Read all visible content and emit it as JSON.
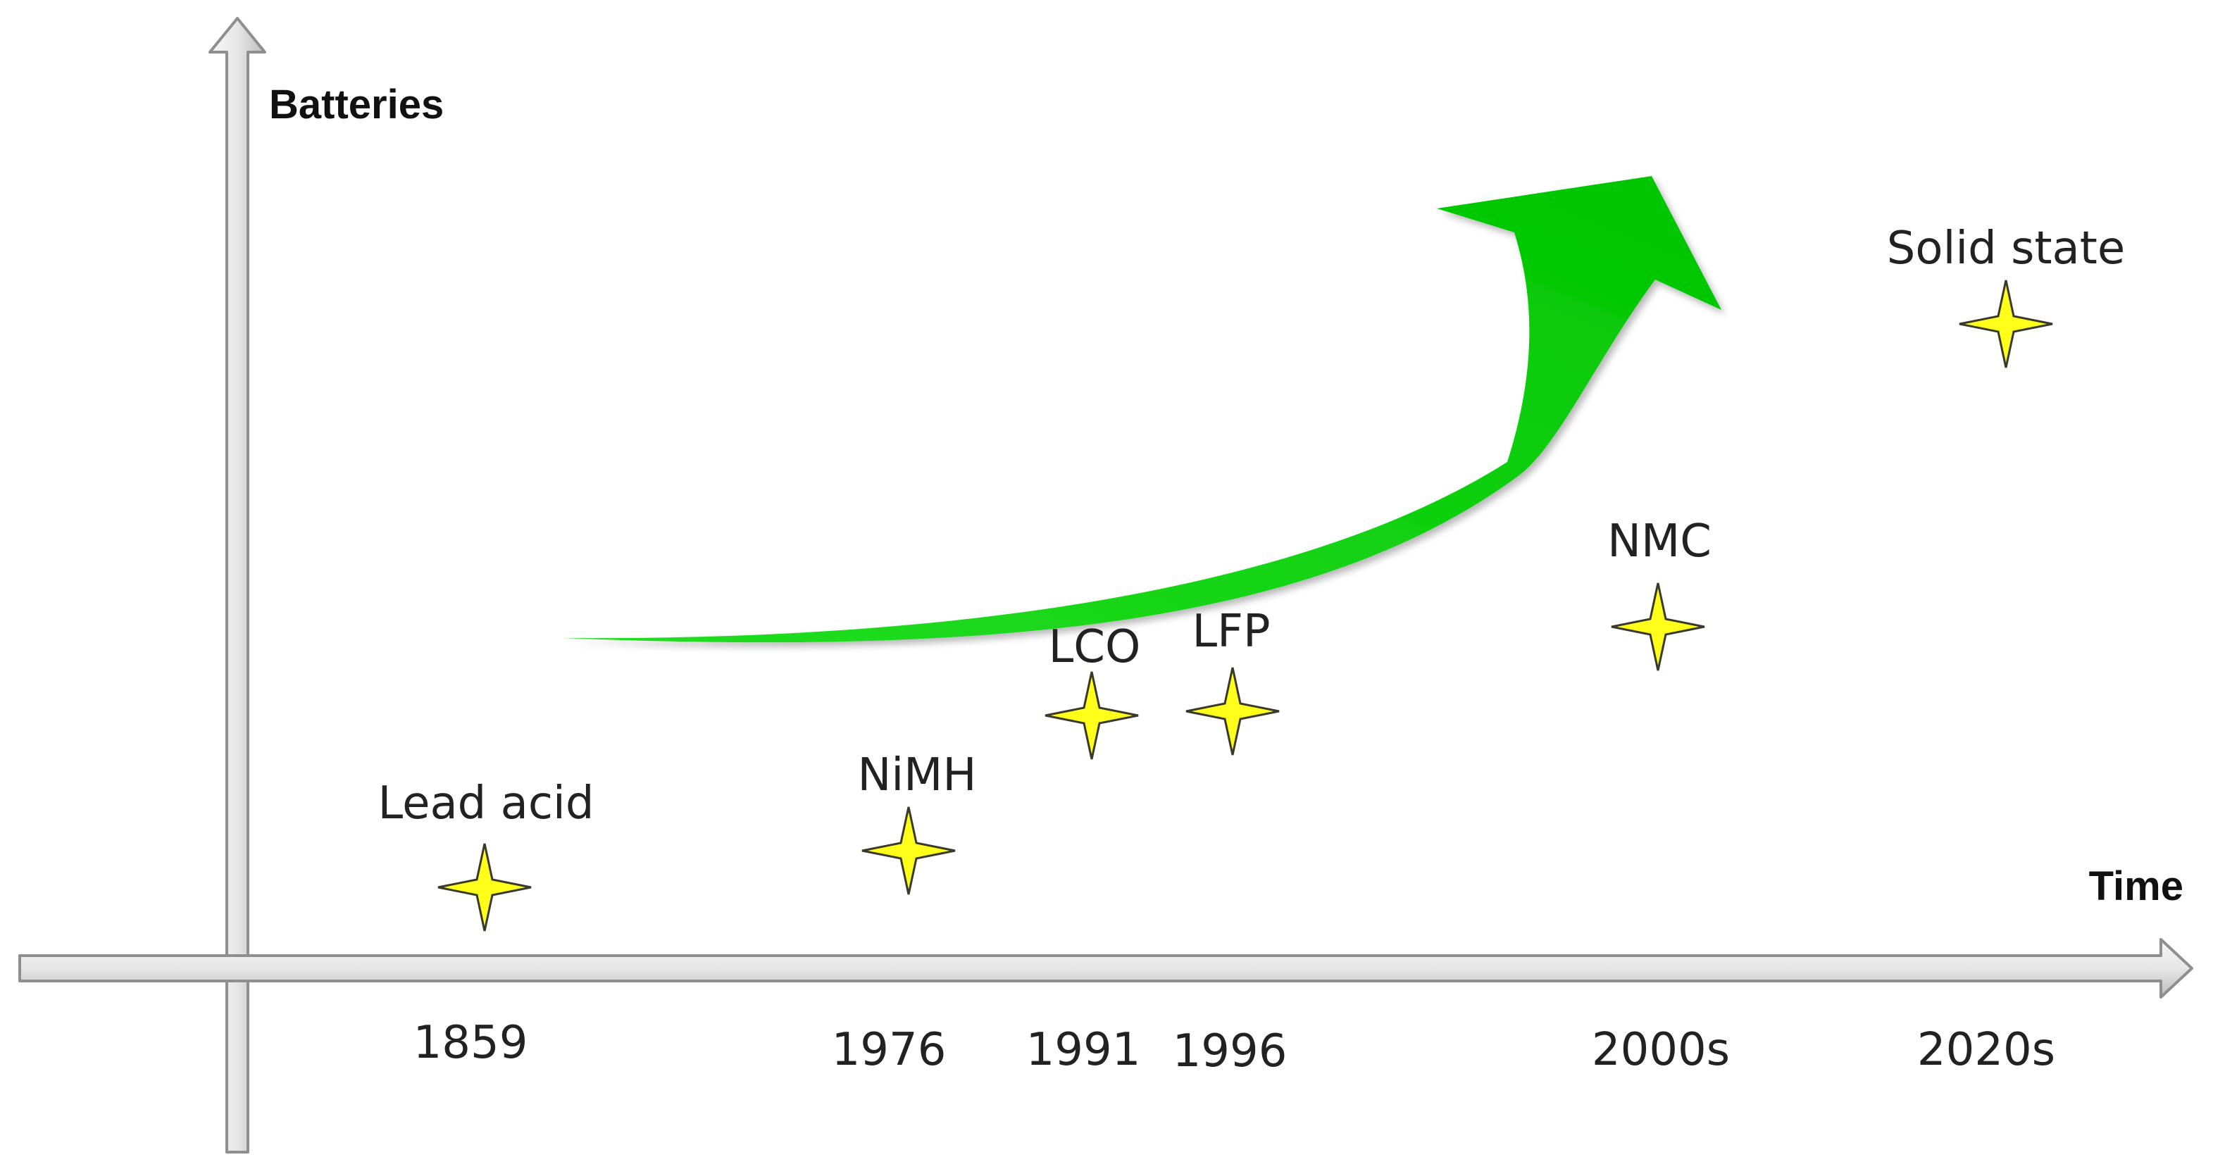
{
  "axes": {
    "y_title": "Batteries",
    "x_title": "Time"
  },
  "milestones": [
    {
      "name": "Lead acid",
      "year": "1859"
    },
    {
      "name": "NiMH",
      "year": "1976"
    },
    {
      "name": "LCO",
      "year": "1991"
    },
    {
      "name": "LFP",
      "year": "1996"
    },
    {
      "name": "NMC",
      "year": "2000s"
    },
    {
      "name": "Solid state",
      "year": "2020s"
    }
  ],
  "colors": {
    "star_fill": "#ffff1a",
    "star_stroke": "#3a3a2a",
    "trend_arrow": "#00cc00",
    "axis_light": "#f4f4f4",
    "axis_dark": "#9a9a9a"
  }
}
